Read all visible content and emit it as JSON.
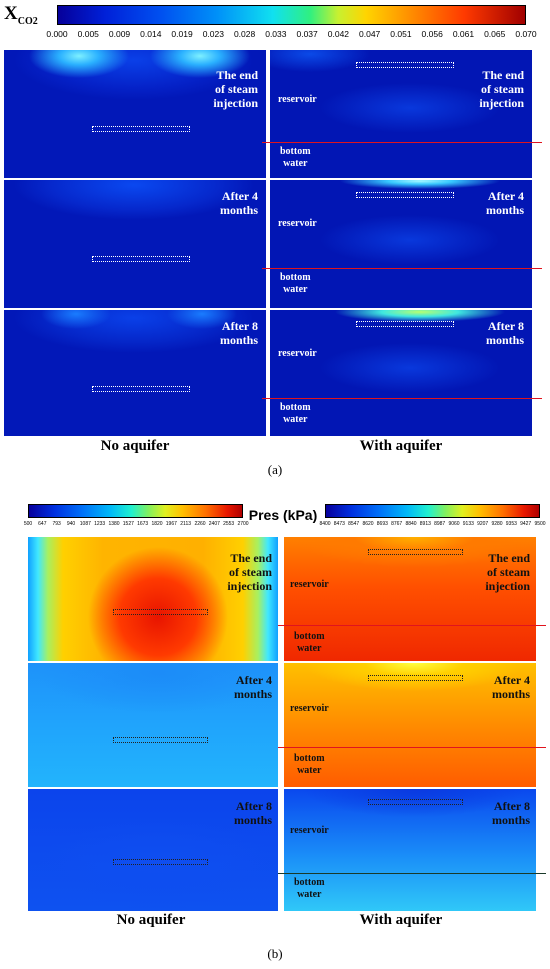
{
  "a": {
    "colorbar": {
      "label_main": "X",
      "label_sub": "CO2",
      "ticks": [
        "0.000",
        "0.005",
        "0.009",
        "0.014",
        "0.019",
        "0.023",
        "0.028",
        "0.033",
        "0.037",
        "0.042",
        "0.047",
        "0.051",
        "0.056",
        "0.061",
        "0.065",
        "0.070"
      ]
    },
    "rows": [
      {
        "label": "The end\nof steam\ninjection"
      },
      {
        "label": "After 4\nmonths"
      },
      {
        "label": "After 8\nmonths"
      }
    ],
    "layer_labels": {
      "reservoir": "reservoir",
      "bottom_water": "bottom\nwater"
    },
    "col_captions": {
      "left": "No aquifer",
      "right": "With aquifer"
    },
    "sublabel": "(a)"
  },
  "b": {
    "title": "Pres (kPa)",
    "colorbar_left_ticks": [
      "500",
      "647",
      "793",
      "940",
      "1087",
      "1233",
      "1380",
      "1527",
      "1673",
      "1820",
      "1967",
      "2113",
      "2260",
      "2407",
      "2553",
      "2700"
    ],
    "colorbar_right_ticks": [
      "8400",
      "8473",
      "8547",
      "8620",
      "8693",
      "8767",
      "8840",
      "8913",
      "8987",
      "9060",
      "9133",
      "9207",
      "9280",
      "9353",
      "9427",
      "9500"
    ],
    "rows": [
      {
        "label": "The end\nof steam\ninjection"
      },
      {
        "label": "After 4\nmonths"
      },
      {
        "label": "After 8\nmonths"
      }
    ],
    "layer_labels": {
      "reservoir": "reservoir",
      "bottom_water": "bottom\nwater"
    },
    "col_captions": {
      "left": "No aquifer",
      "right": "With aquifer"
    },
    "sublabel": "(b)"
  }
}
